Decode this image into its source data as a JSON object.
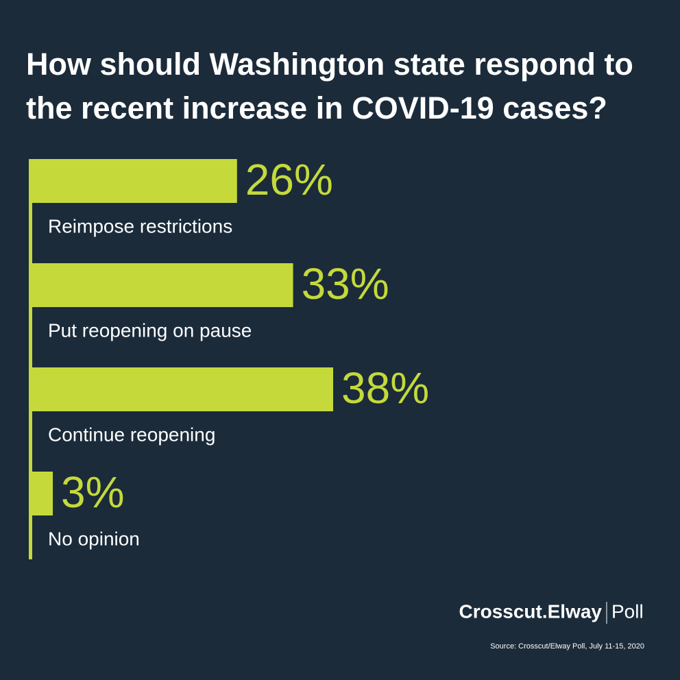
{
  "chart_data": {
    "type": "bar",
    "orientation": "horizontal",
    "title": "How should Washington state respond to the recent increase in COVID-19 cases?",
    "categories": [
      "Reimpose restrictions",
      "Put reopening on pause",
      "Continue reopening",
      "No opinion"
    ],
    "values": [
      26,
      33,
      38,
      3
    ],
    "value_labels": [
      "26%",
      "33%",
      "38%",
      "3%"
    ],
    "color": "#c5d93b",
    "brand": "Crosscut.Elway",
    "brand_suffix": "Poll",
    "source": "Source: Crosscut/Elway Poll, July 11-15, 2020"
  }
}
